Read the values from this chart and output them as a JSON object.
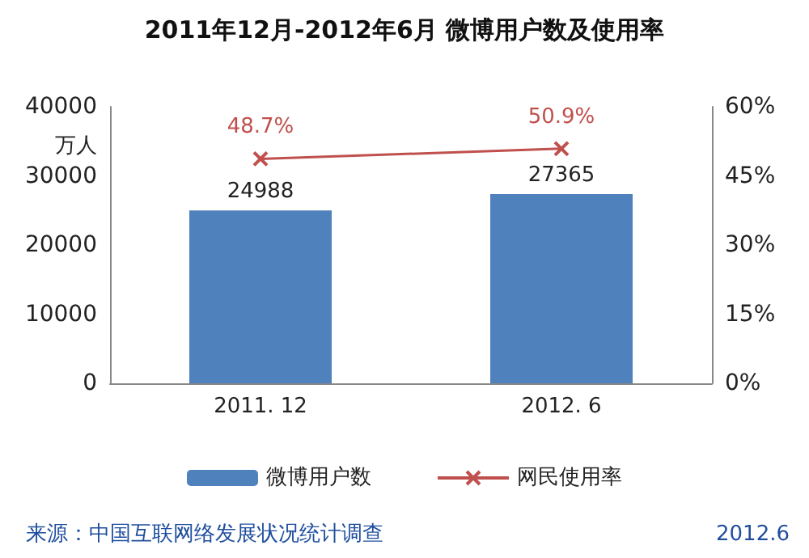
{
  "chart_data": {
    "type": "bar",
    "title": "2011年12月-2012年6月 微博用户数及使用率",
    "categories": [
      "2011. 12",
      "2012. 6"
    ],
    "ylabel": "万人",
    "ylim": [
      0,
      40000
    ],
    "yticks": [
      0,
      10000,
      20000,
      30000,
      40000
    ],
    "y2lim": [
      0,
      60
    ],
    "y2ticks": [
      {
        "value": 0,
        "label": "0%"
      },
      {
        "value": 15,
        "label": "15%"
      },
      {
        "value": 30,
        "label": "30%"
      },
      {
        "value": 45,
        "label": "45%"
      },
      {
        "value": 60,
        "label": "60%"
      }
    ],
    "series": [
      {
        "name": "微博用户数",
        "color": "#4f81bd",
        "values": [
          24988,
          27365
        ],
        "value_labels": [
          "24988",
          "27365"
        ]
      },
      {
        "name": "网民使用率",
        "type": "line",
        "axis": "y2",
        "color": "#c0504d",
        "marker": "cross",
        "values": [
          48.7,
          50.9
        ],
        "value_labels": [
          "48.7%",
          "50.9%"
        ]
      }
    ],
    "legend": "bottom",
    "grid": false,
    "annotations": [
      "来源：中国互联网络发展状况统计调查",
      "2012.6"
    ]
  }
}
